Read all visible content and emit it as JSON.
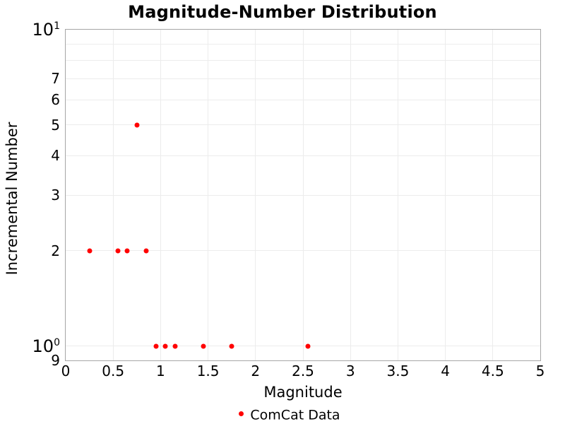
{
  "title": "Magnitude-Number Distribution",
  "chart_data": {
    "type": "scatter",
    "title": "Magnitude-Number Distribution",
    "xlabel": "Magnitude",
    "ylabel": "Incremental Number",
    "grid": true,
    "legend": {
      "position": "bottom-center",
      "entries": [
        {
          "label": "ComCat Data",
          "color": "#ff0000",
          "marker": "circle"
        }
      ]
    },
    "x_axis": {
      "scale": "linear",
      "min": 0,
      "max": 5,
      "ticks": [
        0,
        0.5,
        1,
        1.5,
        2,
        2.5,
        3,
        3.5,
        4,
        4.5,
        5
      ]
    },
    "y_axis": {
      "scale": "log",
      "min": 0.9,
      "max": 10,
      "gridlines": [
        1,
        2,
        3,
        4,
        5,
        6,
        7,
        8,
        9
      ],
      "tick_labels": [
        {
          "value": 10,
          "base": "10",
          "exp": "1"
        },
        {
          "value": 7,
          "text": "7"
        },
        {
          "value": 6,
          "text": "6"
        },
        {
          "value": 5,
          "text": "5"
        },
        {
          "value": 4,
          "text": "4"
        },
        {
          "value": 3,
          "text": "3"
        },
        {
          "value": 2,
          "text": "2"
        },
        {
          "value": 1,
          "base": "10",
          "exp": "0"
        },
        {
          "value": 0.9,
          "text": "9"
        }
      ]
    },
    "series": [
      {
        "name": "ComCat Data",
        "color": "#ff0000",
        "points": [
          {
            "x": 0.25,
            "y": 2
          },
          {
            "x": 0.55,
            "y": 2
          },
          {
            "x": 0.65,
            "y": 2
          },
          {
            "x": 0.75,
            "y": 5
          },
          {
            "x": 0.85,
            "y": 2
          },
          {
            "x": 0.95,
            "y": 1
          },
          {
            "x": 1.05,
            "y": 1
          },
          {
            "x": 1.15,
            "y": 1
          },
          {
            "x": 1.45,
            "y": 1
          },
          {
            "x": 1.75,
            "y": 1
          },
          {
            "x": 2.55,
            "y": 1
          }
        ]
      }
    ],
    "colors": {
      "marker": "#ff0000",
      "grid": "#ececec",
      "frame": "#a6a6a6",
      "text": "#000000"
    }
  }
}
